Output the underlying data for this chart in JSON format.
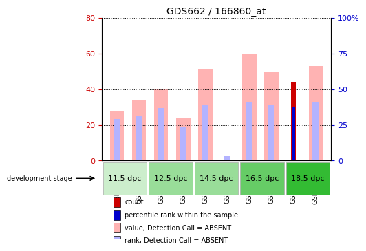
{
  "title": "GDS662 / 166860_at",
  "samples": [
    "GSM21975",
    "GSM21978",
    "GSM21981",
    "GSM21984",
    "GSM21987",
    "GSM21990",
    "GSM21993",
    "GSM21996",
    "GSM21999",
    "GSM22002"
  ],
  "value_absent": [
    28,
    34,
    40,
    24,
    51,
    0,
    60,
    50,
    0,
    53
  ],
  "rank_absent": [
    29,
    31,
    37,
    24,
    39,
    3,
    41,
    39,
    0,
    41
  ],
  "count": [
    0,
    0,
    0,
    0,
    0,
    0,
    0,
    0,
    44,
    0
  ],
  "percentile_rank": [
    0,
    0,
    0,
    0,
    0,
    0,
    0,
    0,
    38,
    0
  ],
  "dev_stages": [
    {
      "label": "11.5 dpc",
      "samples": [
        0,
        1
      ]
    },
    {
      "label": "12.5 dpc",
      "samples": [
        2,
        3
      ]
    },
    {
      "label": "14.5 dpc",
      "samples": [
        4,
        5
      ]
    },
    {
      "label": "16.5 dpc",
      "samples": [
        6,
        7
      ]
    },
    {
      "label": "18.5 dpc",
      "samples": [
        8,
        9
      ]
    }
  ],
  "stage_colors": [
    "#d4f5d4",
    "#b8f0b8",
    "#90e890",
    "#68e068",
    "#40d840"
  ],
  "ylim_left": [
    0,
    80
  ],
  "ylim_right": [
    0,
    100
  ],
  "yticks_left": [
    0,
    20,
    40,
    60,
    80
  ],
  "yticks_right": [
    0,
    25,
    50,
    75,
    100
  ],
  "bar_width": 0.35,
  "color_value_absent": "#ffb3b3",
  "color_rank_absent": "#b3b3ff",
  "color_count": "#cc0000",
  "color_percentile": "#0000cc",
  "tick_label_color_left": "#cc0000",
  "tick_label_color_right": "#0000cc",
  "bg_color": "#ffffff",
  "plot_bg": "#ffffff",
  "grid_color": "#000000",
  "xlabel": "",
  "ylabel_left": "",
  "ylabel_right": ""
}
